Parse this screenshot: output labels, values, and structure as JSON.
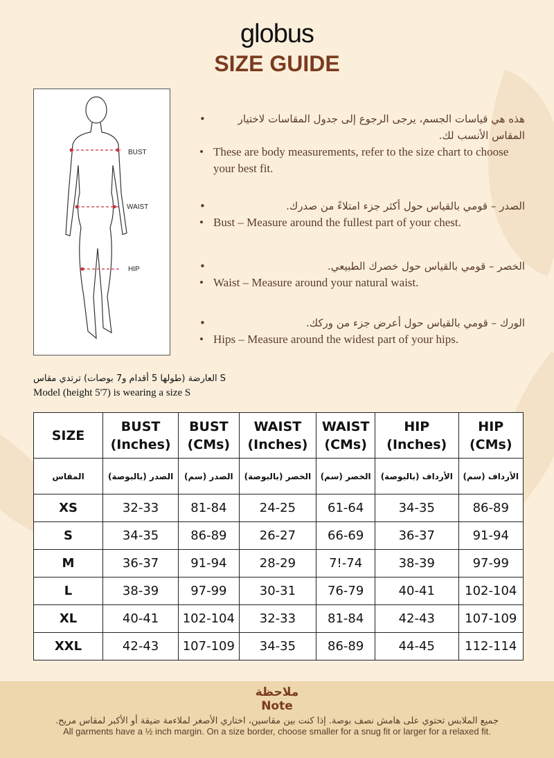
{
  "brand": {
    "logo": "globus",
    "title": "SIZE GUIDE",
    "title_color": "#7a3b1e"
  },
  "figure": {
    "labels": {
      "bust": "BUST",
      "waist": "WAIST",
      "hip": "HIP"
    }
  },
  "bullets": [
    {
      "ar": "هذه هي قياسات الجسم، يرجى الرجوع إلى جدول المقاسات لاختيار المقاس الأنسب لك.",
      "en": "These are body measurements, refer to the size chart to choose your best fit."
    },
    {
      "ar": "الصدر – قومي بالقياس حول أكثر جزء امتلاءً من صدرك.",
      "en": "Bust – Measure around the fullest part of your chest."
    },
    {
      "ar": "الخصر – قومي بالقياس حول خصرك الطبيعي.",
      "en": "Waist – Measure around your natural waist."
    },
    {
      "ar": "الورك – قومي بالقياس حول أعرض جزء من وركك.",
      "en": "Hips – Measure around the widest part of your hips."
    }
  ],
  "model": {
    "ar": "العارضة (طولها 5 أقدام و7 بوصات) ترتدي مقاس S",
    "en": "Model (height 5'7) is wearing a size S"
  },
  "table": {
    "headers": [
      [
        "SIZE",
        ""
      ],
      [
        "BUST",
        "(Inches)"
      ],
      [
        "BUST",
        "(CMs)"
      ],
      [
        "WAIST",
        "(Inches)"
      ],
      [
        "WAIST",
        "(CMs)"
      ],
      [
        "HIP",
        "(Inches)"
      ],
      [
        "HIP",
        "(CMs)"
      ]
    ],
    "headers_ar": [
      "المقاس",
      "الصدر (بالبوصة)",
      "الصدر (سم)",
      "الخصر (بالبوصة)",
      "الخصر (سم)",
      "الأرداف (بالبوصة)",
      "الأرداف (سم)"
    ],
    "rows": [
      [
        "XS",
        "32-33",
        "81-84",
        "24-25",
        "61-64",
        "34-35",
        "86-89"
      ],
      [
        "S",
        "34-35",
        "86-89",
        "26-27",
        "66-69",
        "36-37",
        "91-94"
      ],
      [
        "M",
        "36-37",
        "91-94",
        "28-29",
        "7!-74",
        "38-39",
        "97-99"
      ],
      [
        "L",
        "38-39",
        "97-99",
        "30-31",
        "76-79",
        "40-41",
        "102-104"
      ],
      [
        "XL",
        "40-41",
        "102-104",
        "32-33",
        "81-84",
        "42-43",
        "107-109"
      ],
      [
        "XXL",
        "42-43",
        "107-109",
        "34-35",
        "86-89",
        "44-45",
        "112-114"
      ]
    ]
  },
  "note": {
    "title_ar": "ملاحظة",
    "title_en": "Note",
    "text_ar": "جميع الملابس تحتوي على هامش نصف بوصة. إذا كنت بين مقاسين، اختاري الأصغر لملاءمة ضيقة أو الأكبر لمقاس مريح.",
    "text_en": "All garments have a ½ inch margin. On a size border, choose smaller for a snug fit or larger for a relaxed fit."
  }
}
